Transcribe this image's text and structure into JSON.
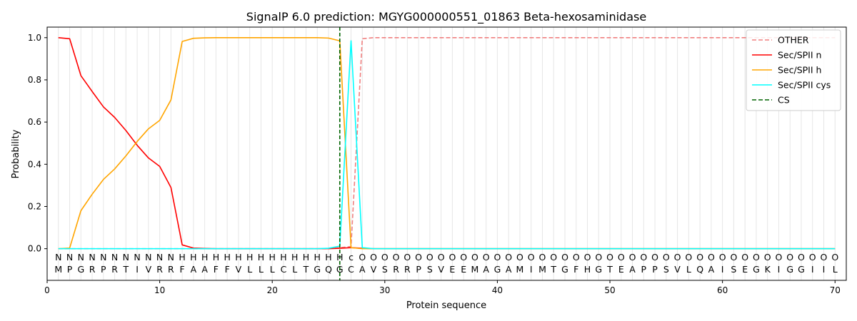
{
  "chart_data": {
    "type": "line",
    "title": "SignalP 6.0 prediction: MGYG000000551_01863 Beta-hexosaminidase",
    "xlabel": "Protein sequence",
    "ylabel": "Probability",
    "xlim": [
      0,
      71
    ],
    "ylim": [
      -0.15,
      1.05
    ],
    "x_ticks": [
      0,
      10,
      20,
      30,
      40,
      50,
      60,
      70
    ],
    "y_ticks": [
      0.0,
      0.2,
      0.4,
      0.6,
      0.8,
      1.0
    ],
    "x_tick_labels": [
      "0",
      "10",
      "20",
      "30",
      "40",
      "50",
      "60",
      "70"
    ],
    "y_tick_labels": [
      "0.0",
      "0.2",
      "0.4",
      "0.6",
      "0.8",
      "1.0"
    ],
    "legend_position": "top-right",
    "sequence": [
      "M",
      "P",
      "G",
      "R",
      "P",
      "R",
      "T",
      "I",
      "V",
      "R",
      "R",
      "F",
      "A",
      "A",
      "F",
      "F",
      "V",
      "L",
      "L",
      "L",
      "C",
      "L",
      "T",
      "G",
      "Q",
      "G",
      "C",
      "A",
      "V",
      "S",
      "R",
      "R",
      "P",
      "S",
      "V",
      "E",
      "E",
      "M",
      "A",
      "G",
      "A",
      "M",
      "I",
      "M",
      "T",
      "G",
      "F",
      "H",
      "G",
      "T",
      "E",
      "A",
      "P",
      "P",
      "S",
      "V",
      "L",
      "Q",
      "A",
      "I",
      "S",
      "E",
      "G",
      "K",
      "I",
      "G",
      "G",
      "I",
      "I",
      "L"
    ],
    "region_labels": [
      "N",
      "N",
      "N",
      "N",
      "N",
      "N",
      "N",
      "N",
      "N",
      "N",
      "N",
      "H",
      "H",
      "H",
      "H",
      "H",
      "H",
      "H",
      "H",
      "H",
      "H",
      "H",
      "H",
      "H",
      "H",
      "H",
      "C",
      "O",
      "O",
      "O",
      "O",
      "O",
      "O",
      "O",
      "O",
      "O",
      "O",
      "O",
      "O",
      "O",
      "O",
      "O",
      "O",
      "O",
      "O",
      "O",
      "O",
      "O",
      "O",
      "O",
      "O",
      "O",
      "O",
      "O",
      "O",
      "O",
      "O",
      "O",
      "O",
      "O",
      "O",
      "O",
      "O",
      "O",
      "O",
      "O",
      "O",
      "O",
      "O",
      "O"
    ],
    "region_display": [
      "N",
      "N",
      "N",
      "N",
      "N",
      "N",
      "N",
      "N",
      "N",
      "N",
      "N",
      "H",
      "H",
      "H",
      "H",
      "H",
      "H",
      "H",
      "H",
      "H",
      "H",
      "H",
      "H",
      "H",
      "H",
      "H",
      "c",
      "O",
      "O",
      "O",
      "O",
      "O",
      "O",
      "O",
      "O",
      "O",
      "O",
      "O",
      "O",
      "O",
      "O",
      "O",
      "O",
      "O",
      "O",
      "O",
      "O",
      "O",
      "O",
      "O",
      "O",
      "O",
      "O",
      "O",
      "O",
      "O",
      "O",
      "O",
      "O",
      "O",
      "O",
      "O",
      "O",
      "O",
      "O",
      "O",
      "O",
      "O",
      "O",
      "O"
    ],
    "region_colors": {
      "N": "#ff0000",
      "H": "#ffa500",
      "C": "#00ffff",
      "O": "#808080"
    },
    "cleavage_site": 26,
    "series": [
      {
        "name": "OTHER",
        "color": "#f08080",
        "dash": true,
        "values": [
          0,
          0,
          0,
          0,
          0,
          0,
          0,
          0,
          0,
          0,
          0,
          0,
          0,
          0,
          0,
          0,
          0,
          0,
          0,
          0,
          0,
          0,
          0,
          0,
          0,
          0.005,
          0.01,
          0.995,
          1,
          1,
          1,
          1,
          1,
          1,
          1,
          1,
          1,
          1,
          1,
          1,
          1,
          1,
          1,
          1,
          1,
          1,
          1,
          1,
          1,
          1,
          1,
          1,
          1,
          1,
          1,
          1,
          1,
          1,
          1,
          1,
          1,
          1,
          1,
          1,
          1,
          1,
          1,
          1,
          1,
          1
        ]
      },
      {
        "name": "Sec/SPII n",
        "color": "#ff0000",
        "dash": false,
        "values": [
          1.0,
          0.995,
          0.82,
          0.745,
          0.672,
          0.622,
          0.56,
          0.49,
          0.43,
          0.39,
          0.29,
          0.018,
          0.003,
          0.001,
          0,
          0,
          0,
          0,
          0,
          0,
          0,
          0,
          0,
          0,
          0,
          0.002,
          0.005,
          0.002,
          0,
          0,
          0,
          0,
          0,
          0,
          0,
          0,
          0,
          0,
          0,
          0,
          0,
          0,
          0,
          0,
          0,
          0,
          0,
          0,
          0,
          0,
          0,
          0,
          0,
          0,
          0,
          0,
          0,
          0,
          0,
          0,
          0,
          0,
          0,
          0,
          0,
          0,
          0,
          0,
          0,
          0
        ]
      },
      {
        "name": "Sec/SPII h",
        "color": "#ffa500",
        "dash": false,
        "values": [
          0,
          0.003,
          0.18,
          0.258,
          0.328,
          0.378,
          0.44,
          0.508,
          0.568,
          0.608,
          0.705,
          0.982,
          0.997,
          0.999,
          1,
          1,
          1,
          1,
          1,
          1,
          1,
          1,
          1,
          1,
          0.998,
          0.985,
          0.005,
          0,
          0,
          0,
          0,
          0,
          0,
          0,
          0,
          0,
          0,
          0,
          0,
          0,
          0,
          0,
          0,
          0,
          0,
          0,
          0,
          0,
          0,
          0,
          0,
          0,
          0,
          0,
          0,
          0,
          0,
          0,
          0,
          0,
          0,
          0,
          0,
          0,
          0,
          0,
          0,
          0,
          0,
          0
        ]
      },
      {
        "name": "Sec/SPII cys",
        "color": "#00ffff",
        "dash": false,
        "values": [
          0,
          0,
          0,
          0,
          0,
          0,
          0,
          0,
          0,
          0,
          0,
          0,
          0,
          0,
          0,
          0,
          0,
          0,
          0,
          0,
          0,
          0,
          0,
          0,
          0.002,
          0.012,
          0.985,
          0.005,
          0,
          0,
          0,
          0,
          0,
          0,
          0,
          0,
          0,
          0,
          0,
          0,
          0,
          0,
          0,
          0,
          0,
          0,
          0,
          0,
          0,
          0,
          0,
          0,
          0,
          0,
          0,
          0,
          0,
          0,
          0,
          0,
          0,
          0,
          0,
          0,
          0,
          0,
          0,
          0,
          0,
          0
        ]
      },
      {
        "name": "CS",
        "color": "#006400",
        "dash": true,
        "values": []
      }
    ]
  }
}
